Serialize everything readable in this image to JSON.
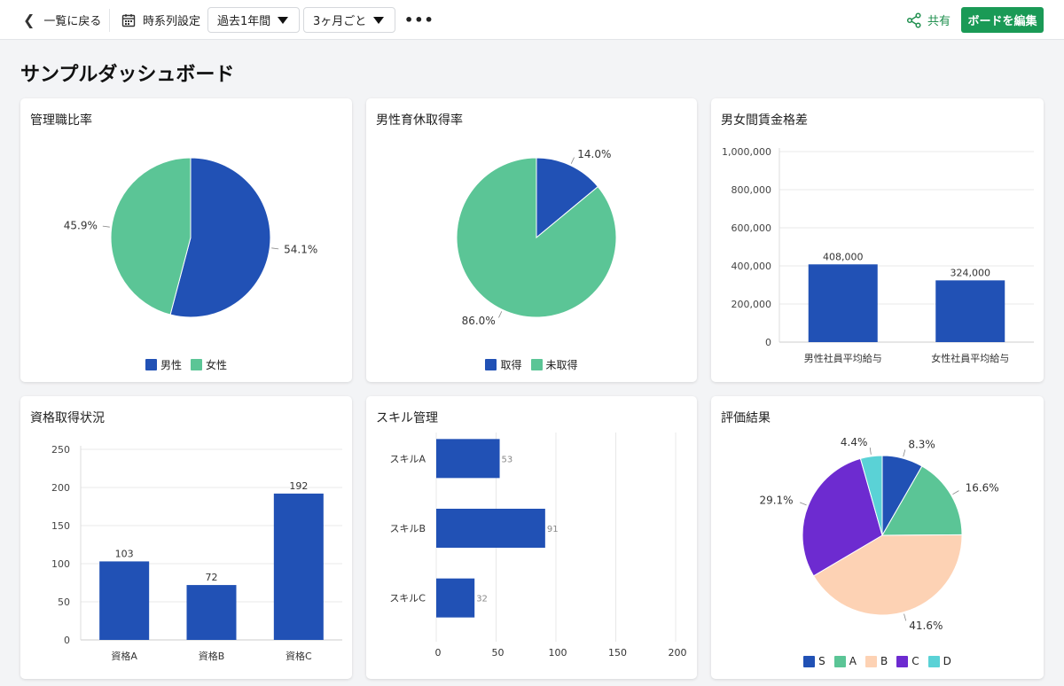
{
  "toolbar": {
    "back_label": "一覧に戻る",
    "timeseries_label": "時系列設定",
    "period_select": "過去1年間",
    "interval_select": "3ヶ月ごと",
    "more_label": "•••",
    "share_label": "共有",
    "edit_label": "ボードを編集"
  },
  "page": {
    "title": "サンプルダッシュボード"
  },
  "colors": {
    "blue": "#2151b5",
    "green": "#5bc596",
    "peach": "#fdd2b4",
    "purple": "#6d2bd0",
    "cyan": "#5ad2d6",
    "brand": "#1a9a56"
  },
  "cards": [
    {
      "title": "管理職比率"
    },
    {
      "title": "男性育休取得率"
    },
    {
      "title": "男女間賃金格差"
    },
    {
      "title": "資格取得状況"
    },
    {
      "title": "スキル管理"
    },
    {
      "title": "評価結果"
    }
  ],
  "chart_data": [
    {
      "type": "pie",
      "title": "管理職比率",
      "series": [
        {
          "name": "男性",
          "value": 54.1,
          "label": "54.1%",
          "color": "#2151b5"
        },
        {
          "name": "女性",
          "value": 45.9,
          "label": "45.9%",
          "color": "#5bc596"
        }
      ],
      "legend": "bottom"
    },
    {
      "type": "pie",
      "title": "男性育休取得率",
      "series": [
        {
          "name": "取得",
          "value": 14.0,
          "label": "14.0%",
          "color": "#2151b5"
        },
        {
          "name": "未取得",
          "value": 86.0,
          "label": "86.0%",
          "color": "#5bc596"
        }
      ],
      "legend": "bottom"
    },
    {
      "type": "bar",
      "title": "男女間賃金格差",
      "categories": [
        "男性社員平均給与",
        "女性社員平均給与"
      ],
      "values": [
        408000,
        324000
      ],
      "value_labels": [
        "408,000",
        "324,000"
      ],
      "ylim": [
        0,
        1000000
      ],
      "yticks": [
        "0",
        "200,000",
        "400,000",
        "600,000",
        "800,000",
        "1,000,000"
      ],
      "grid": true
    },
    {
      "type": "bar",
      "title": "資格取得状況",
      "categories": [
        "資格A",
        "資格B",
        "資格C"
      ],
      "values": [
        103,
        72,
        192
      ],
      "value_labels": [
        "103",
        "72",
        "192"
      ],
      "ylim": [
        0,
        250
      ],
      "yticks": [
        "0",
        "50",
        "100",
        "150",
        "200",
        "250"
      ],
      "grid": true
    },
    {
      "type": "bar",
      "orientation": "horizontal",
      "title": "スキル管理",
      "categories": [
        "スキルA",
        "スキルB",
        "スキルC"
      ],
      "values": [
        53,
        91,
        32
      ],
      "value_labels": [
        "53",
        "91",
        "32"
      ],
      "xlim": [
        0,
        200
      ],
      "xticks": [
        "0",
        "50",
        "100",
        "150",
        "200"
      ],
      "grid": true
    },
    {
      "type": "pie",
      "title": "評価結果",
      "series": [
        {
          "name": "S",
          "value": 8.3,
          "label": "8.3%",
          "color": "#2151b5"
        },
        {
          "name": "A",
          "value": 16.6,
          "label": "16.6%",
          "color": "#5bc596"
        },
        {
          "name": "B",
          "value": 41.6,
          "label": "41.6%",
          "color": "#fdd2b4"
        },
        {
          "name": "C",
          "value": 29.1,
          "label": "29.1%",
          "color": "#6d2bd0"
        },
        {
          "name": "D",
          "value": 4.4,
          "label": "4.4%",
          "color": "#5ad2d6"
        }
      ],
      "legend": "bottom"
    }
  ]
}
